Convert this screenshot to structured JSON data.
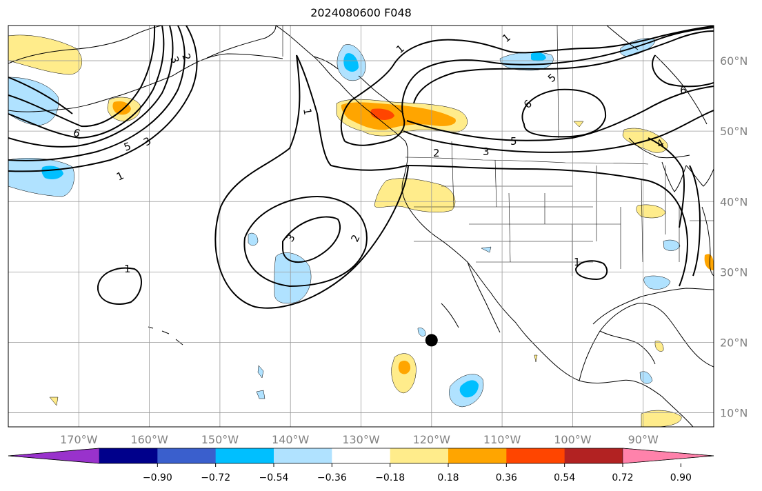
{
  "title": "2024080600 F048",
  "map": {
    "projection": "equirectangular",
    "lon_range": [
      -180,
      -80
    ],
    "lat_range": [
      8,
      65
    ],
    "grid": true,
    "lat_labels": [
      "60°N",
      "50°N",
      "40°N",
      "30°N",
      "20°N",
      "10°N"
    ],
    "lon_labels": [
      "170°W",
      "160°W",
      "150°W",
      "140°W",
      "130°W",
      "120°W",
      "110°W",
      "100°W",
      "90°W"
    ],
    "contour_color": "#000000",
    "contour_labels": [
      "1",
      "2",
      "3",
      "4",
      "5",
      "6"
    ],
    "marker": {
      "lon": -120.0,
      "lat": 20.3,
      "color": "#000000",
      "icon": "filled-circle"
    }
  },
  "colorbar": {
    "levels": [
      -0.9,
      -0.72,
      -0.54,
      -0.36,
      -0.18,
      0.18,
      0.36,
      0.54,
      0.72,
      0.9
    ],
    "tick_labels": [
      "−0.90",
      "−0.72",
      "−0.54",
      "−0.36",
      "−0.18",
      "0.18",
      "0.36",
      "0.54",
      "0.72",
      "0.90"
    ],
    "colors": [
      "#9932cc",
      "#00008b",
      "#3a5fcd",
      "#00bfff",
      "#b0e2ff",
      "#ffffff",
      "#ffec8b",
      "#ffa500",
      "#ff4500",
      "#b22222",
      "#ff82ab"
    ],
    "extend": "both"
  }
}
